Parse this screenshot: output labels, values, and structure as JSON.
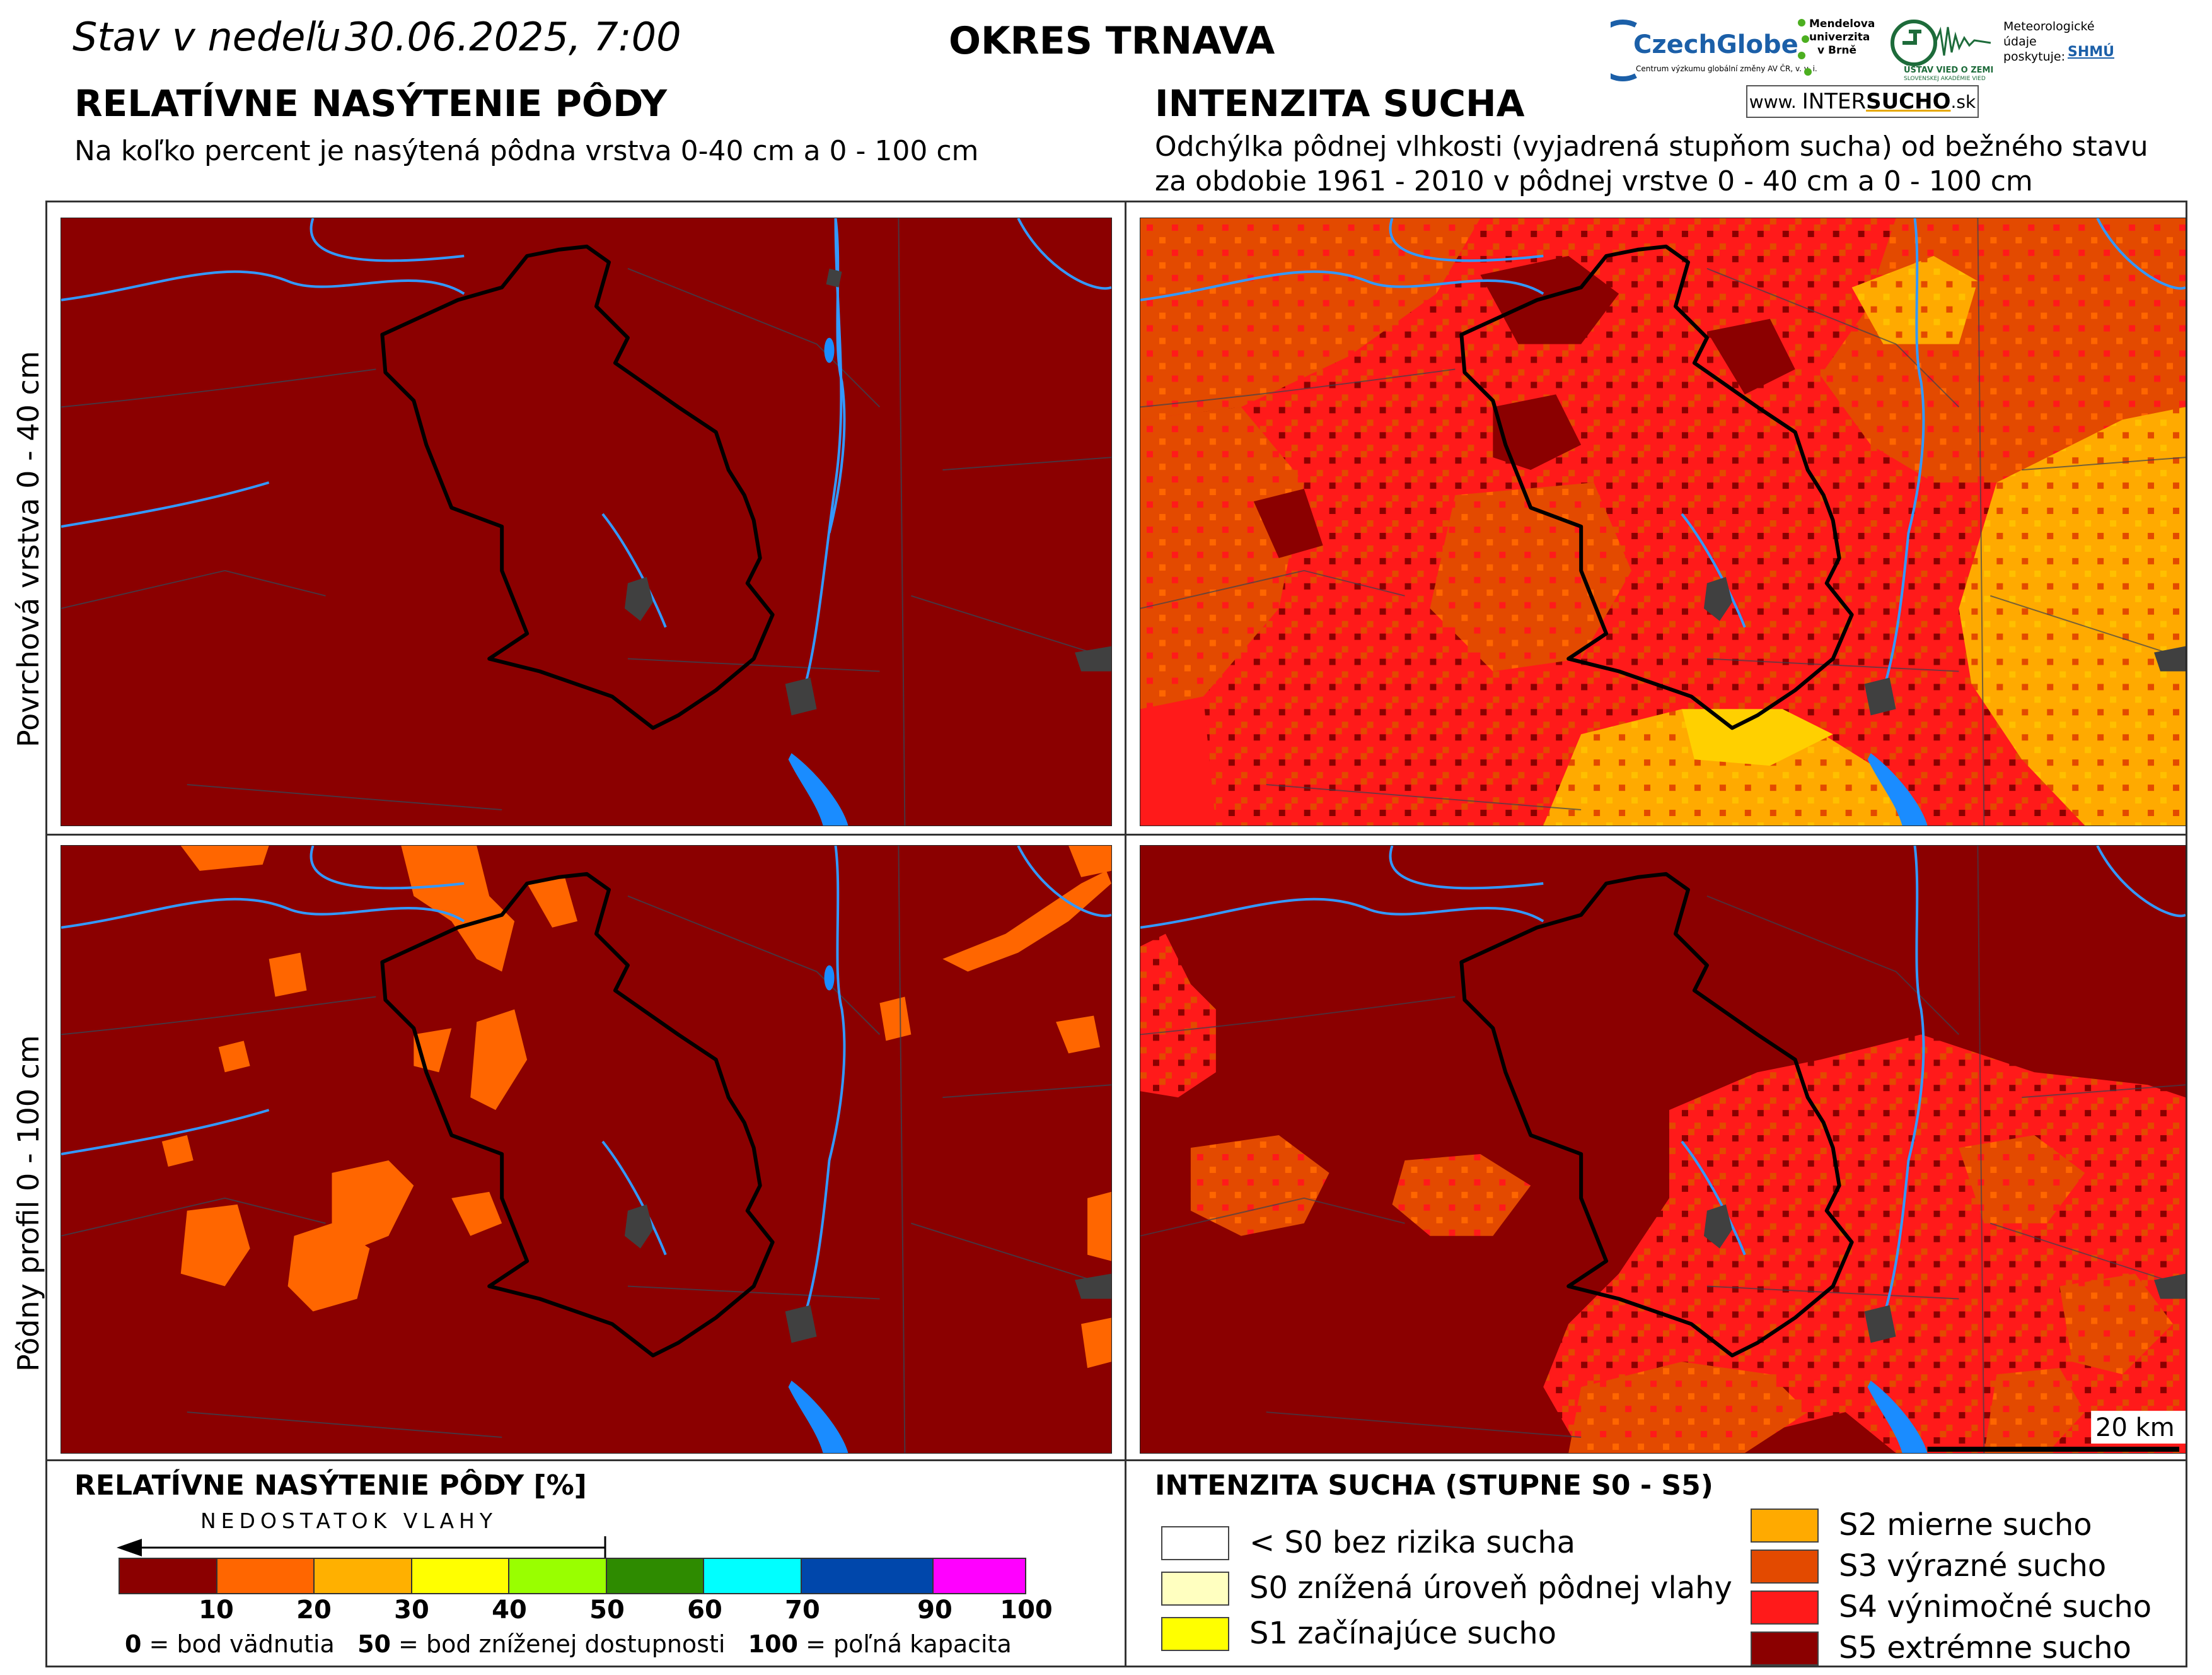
{
  "header": {
    "date_prefix": "Stav v nedeľu",
    "date_value": "30.06.2025, 7:00",
    "district": "OKRES  TRNAVA"
  },
  "logos": {
    "czechglobe": "CzechGlobe",
    "czechglobe_sub": "Centrum výzkumu globální změny AV ČR, v. v. i.",
    "mendel": [
      "Mendelova",
      "univerzita",
      "v Brně"
    ],
    "uvz": "ÚSTAV VIED O ZEMI",
    "uvz_sub": "SLOVENSKEJ AKADÉMIE VIED",
    "meteo": [
      "Meteorologické",
      "údaje",
      "poskytuje:"
    ],
    "shmu": "SHMÚ",
    "intersucho_prefix": "www.",
    "intersucho_main_a": "INTER",
    "intersucho_main_b": "SUCHO",
    "intersucho_suffix": ".sk"
  },
  "left_section": {
    "title": "RELATÍVNE NASÝTENIE PÔDY",
    "subtitle": "Na koľko percent je nasýtená pôdna vrstva 0-40 cm a 0 - 100 cm"
  },
  "right_section": {
    "title": "INTENZITA SUCHA",
    "subtitle_line1": "Odchýlka pôdnej vlhkosti (vyjadrená stupňom sucha) od bežného stavu",
    "subtitle_line2": "za obdobie 1961 - 2010 v pôdnej vrstve 0 - 40 cm a 0 - 100 cm"
  },
  "row_labels": {
    "top": "Povrchová vrstva 0 - 40 cm",
    "bottom": "Pôdny profil 0 - 100 cm"
  },
  "scale_bar": {
    "label": "20 km"
  },
  "legend_saturation": {
    "title": "RELATÍVNE NASÝTENIE PÔDY [%]",
    "arrow_label": "NEDOSTATOK VLAHY",
    "colors": [
      "#8b0000",
      "#ff6600",
      "#ffb000",
      "#ffff00",
      "#99ff00",
      "#2e8b00",
      "#00ffff",
      "#0047ab",
      "#ff00ff"
    ],
    "ticks": [
      "10",
      "20",
      "30",
      "40",
      "50",
      "60",
      "70",
      "90",
      "100"
    ],
    "footnote": [
      {
        "value": "0",
        "text": " = bod vädnutia"
      },
      {
        "value": "50",
        "text": " = bod zníženej dostupnosti"
      },
      {
        "value": "100",
        "text": " = poľná kapacita"
      }
    ]
  },
  "legend_drought": {
    "title": "INTENZITA SUCHA (STUPNE S0 - S5)",
    "items": [
      {
        "label": "< S0 bez rizika sucha",
        "color": "#ffffff"
      },
      {
        "label": "S0 znížená úroveň pôdnej vlahy",
        "color": "#ffffc0"
      },
      {
        "label": "S1 začínajúce sucho",
        "color": "#ffff00"
      },
      {
        "label": "S2 mierne sucho",
        "color": "#ffaa00"
      },
      {
        "label": "S3 výrazné sucho",
        "color": "#e34a00"
      },
      {
        "label": "S4 výnimočné sucho",
        "color": "#ff1a1a"
      },
      {
        "label": "S5 extrémne sucho",
        "color": "#8b0000"
      }
    ]
  }
}
